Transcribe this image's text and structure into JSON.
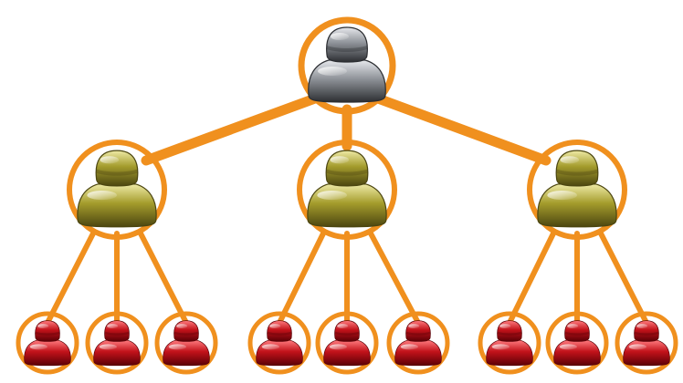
{
  "diagram": {
    "type": "hierarchy",
    "levels": 3,
    "connector_color": "#f0901e",
    "tiers": [
      {
        "tier": "top",
        "color_name": "silver",
        "base": "#8e9298",
        "light": "#e6e8ec",
        "dark": "#2c2e32",
        "count": 1
      },
      {
        "tier": "middle",
        "color_name": "gold",
        "base": "#a49c2c",
        "light": "#eeeaa6",
        "dark": "#4c4610",
        "count": 3
      },
      {
        "tier": "bottom",
        "color_name": "red",
        "base": "#c2121a",
        "light": "#ff7a7e",
        "dark": "#5a0006",
        "count": 9
      }
    ],
    "children_per_parent": 3
  },
  "icons": {
    "person": "person-icon"
  }
}
